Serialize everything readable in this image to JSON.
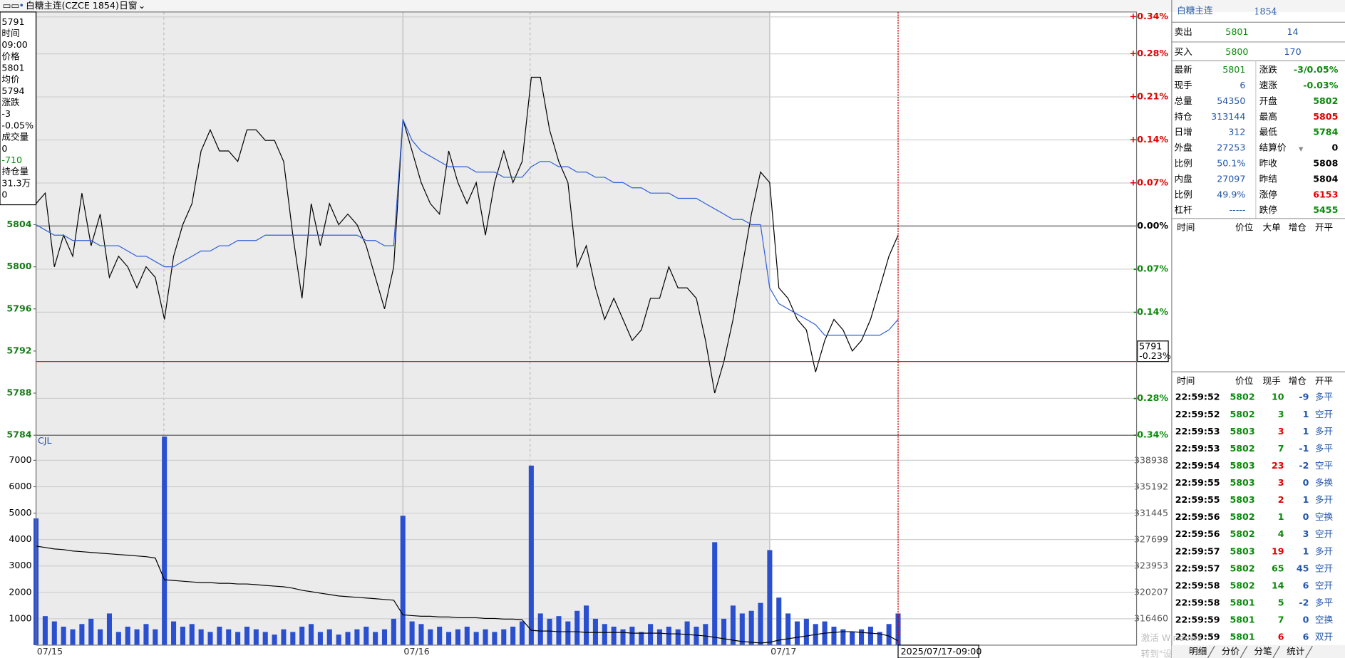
{
  "header": {
    "symbol": "白糖主连(CZCE 1854)",
    "window": "日窗"
  },
  "info_panel": [
    {
      "text": "5791",
      "color": "#000000"
    },
    {
      "text": "时间",
      "color": "#000000"
    },
    {
      "text": "09:00",
      "color": "#000000"
    },
    {
      "text": "价格",
      "color": "#000000"
    },
    {
      "text": "5801",
      "color": "#000000"
    },
    {
      "text": "均价",
      "color": "#000000"
    },
    {
      "text": "5794",
      "color": "#000000"
    },
    {
      "text": "涨跌",
      "color": "#000000"
    },
    {
      "text": "-3",
      "color": "#000000"
    },
    {
      "text": "-0.05%",
      "color": "#000000"
    },
    {
      "text": "成交量",
      "color": "#000000"
    },
    {
      "text": "0",
      "color": "#000000"
    },
    {
      "text": "-710",
      "color": "#0a8a0a"
    },
    {
      "text": "持仓量",
      "color": "#000000"
    },
    {
      "text": "31.3万",
      "color": "#000000"
    },
    {
      "text": "0",
      "color": "#000000"
    }
  ],
  "chart_data": [
    {
      "type": "line",
      "x": [
        0,
        1,
        2,
        3,
        4,
        5,
        6,
        7,
        8,
        9,
        10,
        11,
        12,
        13,
        14,
        15,
        16,
        17,
        18,
        19,
        20,
        21,
        22,
        23,
        24,
        25,
        26,
        27,
        28,
        29,
        30,
        31,
        32,
        33,
        34,
        35,
        36,
        37,
        38,
        39,
        40,
        41,
        42,
        43,
        44,
        45,
        46,
        47,
        48,
        49,
        50,
        51,
        52,
        53,
        54,
        55,
        56,
        57,
        58,
        59,
        60,
        61,
        62,
        63,
        64,
        65,
        66,
        67,
        68,
        69,
        70,
        71,
        72,
        73,
        74,
        75,
        76,
        77,
        78,
        79,
        80,
        81,
        82,
        83,
        84,
        85,
        86,
        87,
        88,
        89,
        90,
        91,
        92,
        93,
        94
      ],
      "xlim": [
        0,
        120
      ],
      "ylim": [
        5784,
        5824.2
      ],
      "yticks": [
        5784,
        5788,
        5792,
        5796,
        5800,
        5804
      ],
      "y2lim": [
        -0.34,
        0.348
      ],
      "y2ticks": [
        {
          "value": 0.34,
          "label": "+0.34%"
        },
        {
          "value": 0.28,
          "label": "+0.28%"
        },
        {
          "value": 0.21,
          "label": "+0.21%"
        },
        {
          "value": 0.14,
          "label": "+0.14%"
        },
        {
          "value": 0.07,
          "label": "+0.07%"
        },
        {
          "value": 0,
          "label": "0.00%"
        },
        {
          "value": -0.07,
          "label": "-0.07%"
        },
        {
          "value": -0.14,
          "label": "-0.14%"
        },
        {
          "value": -0.28,
          "label": "-0.28%"
        },
        {
          "value": -0.34,
          "label": "-0.34%"
        }
      ],
      "grid": true,
      "series": [
        {
          "color": "#000000",
          "values": [
            5806,
            5807,
            5800,
            5803,
            5801,
            5807,
            5802,
            5805,
            5799,
            5801,
            5800,
            5798,
            5800,
            5799,
            5795,
            5801,
            5804,
            5806,
            5811,
            5813,
            5811,
            5811,
            5810,
            5813,
            5813,
            5812,
            5812,
            5810,
            5803,
            5797,
            5806,
            5802,
            5806,
            5804,
            5805,
            5804,
            5802,
            5799,
            5796,
            5800,
            5814,
            5811,
            5808,
            5806,
            5805,
            5811,
            5808,
            5806,
            5808,
            5803,
            5808,
            5811,
            5808,
            5810,
            5818,
            5818,
            5813,
            5810,
            5808,
            5800,
            5802,
            5798,
            5795,
            5797,
            5795,
            5793,
            5794,
            5797,
            5797,
            5800,
            5798,
            5798,
            5797,
            5793,
            5788,
            5791,
            5795,
            5800,
            5805,
            5809,
            5808,
            5798,
            5797,
            5795,
            5794,
            5790,
            5793,
            5795,
            5794,
            5792,
            5793,
            5795,
            5798,
            5801,
            5803
          ]
        },
        {
          "color": "#2f5fd8",
          "values": [
            5804,
            5803.5,
            5803,
            5803,
            5802.5,
            5802.5,
            5802.5,
            5802,
            5802,
            5802,
            5801.5,
            5801,
            5801,
            5800.5,
            5800,
            5800,
            5800.5,
            5801,
            5801.5,
            5801.5,
            5802,
            5802,
            5802.5,
            5802.5,
            5802.5,
            5803,
            5803,
            5803,
            5803,
            5803,
            5803,
            5803,
            5803,
            5803,
            5803,
            5803,
            5802.5,
            5802.5,
            5802,
            5802,
            5814,
            5812,
            5811,
            5810.5,
            5810,
            5809.5,
            5809.5,
            5809.5,
            5809,
            5809,
            5809,
            5808.5,
            5808.5,
            5808.5,
            5809.5,
            5810,
            5810,
            5809.5,
            5809.5,
            5809,
            5809,
            5808.5,
            5808.5,
            5808,
            5808,
            5807.5,
            5807.5,
            5807,
            5807,
            5807,
            5806.5,
            5806.5,
            5806.5,
            5806,
            5805.5,
            5805,
            5804.5,
            5804.5,
            5804,
            5804,
            5798,
            5796.5,
            5796,
            5795.5,
            5795,
            5794.5,
            5793.5,
            5793.5,
            5793.5,
            5793.5,
            5793.5,
            5793.5,
            5793.5,
            5794,
            5795
          ]
        }
      ]
    },
    {
      "type": "bar",
      "label": "CJL",
      "x": [
        0,
        1,
        2,
        3,
        4,
        5,
        6,
        7,
        8,
        9,
        10,
        11,
        12,
        13,
        14,
        15,
        16,
        17,
        18,
        19,
        20,
        21,
        22,
        23,
        24,
        25,
        26,
        27,
        28,
        29,
        30,
        31,
        32,
        33,
        34,
        35,
        36,
        37,
        38,
        39,
        40,
        41,
        42,
        43,
        44,
        45,
        46,
        47,
        48,
        49,
        50,
        51,
        52,
        53,
        54,
        55,
        56,
        57,
        58,
        59,
        60,
        61,
        62,
        63,
        64,
        65,
        66,
        67,
        68,
        69,
        70,
        71,
        72,
        73,
        74,
        75,
        76,
        77,
        78,
        79,
        80,
        81,
        82,
        83,
        84,
        85,
        86,
        87,
        88,
        89,
        90,
        91,
        92,
        93,
        94
      ],
      "xlim": [
        0,
        120
      ],
      "xticks": [
        {
          "value": 0,
          "label": "07/15"
        },
        {
          "value": 40,
          "label": "07/16"
        },
        {
          "value": 80,
          "label": "07/17"
        }
      ],
      "ylim": [
        0,
        7950
      ],
      "yticks": [
        1000,
        2000,
        3000,
        4000,
        5000,
        6000,
        7000
      ],
      "y2lim": [
        312690,
        342590
      ],
      "y2ticks": [
        316460,
        320207,
        323953,
        327699,
        331445,
        335192,
        338938
      ],
      "grid": true,
      "series": [
        {
          "color": "#2a50d0",
          "values": [
            4800,
            1100,
            900,
            700,
            600,
            800,
            1000,
            600,
            1200,
            500,
            700,
            600,
            800,
            600,
            7900,
            900,
            700,
            800,
            600,
            500,
            700,
            600,
            500,
            700,
            600,
            500,
            400,
            600,
            500,
            700,
            800,
            500,
            600,
            400,
            500,
            600,
            700,
            500,
            600,
            1000,
            4900,
            900,
            800,
            600,
            700,
            500,
            600,
            700,
            500,
            600,
            500,
            600,
            700,
            900,
            6800,
            1200,
            1000,
            1100,
            900,
            1300,
            1500,
            1000,
            800,
            700,
            600,
            700,
            500,
            800,
            600,
            700,
            600,
            900,
            700,
            800,
            3900,
            1000,
            1500,
            1200,
            1300,
            1600,
            3600,
            1800,
            1200,
            900,
            1000,
            800,
            900,
            700,
            600,
            500,
            600,
            700,
            500,
            800,
            1200
          ]
        },
        {
          "type": "line",
          "axis": "y2",
          "color": "#000000",
          "values": [
            326800,
            326600,
            326400,
            326300,
            326100,
            326000,
            325900,
            325800,
            325700,
            325600,
            325500,
            325400,
            325300,
            325100,
            322000,
            321900,
            321800,
            321700,
            321600,
            321600,
            321500,
            321500,
            321400,
            321400,
            321300,
            321200,
            321100,
            321000,
            320800,
            320500,
            320300,
            320100,
            319900,
            319700,
            319600,
            319500,
            319400,
            319300,
            319200,
            319100,
            317000,
            316900,
            316800,
            316800,
            316700,
            316700,
            316600,
            316600,
            316600,
            316500,
            316500,
            316400,
            316400,
            316300,
            314800,
            314700,
            314700,
            314600,
            314600,
            314600,
            314500,
            314500,
            314500,
            314500,
            314500,
            314400,
            314400,
            314400,
            314400,
            314300,
            314300,
            314200,
            314100,
            314000,
            313800,
            313600,
            313400,
            313200,
            313100,
            313000,
            313100,
            313400,
            313600,
            313800,
            314000,
            314200,
            314400,
            314500,
            314600,
            314600,
            314500,
            314400,
            314300,
            314000,
            313300
          ]
        }
      ]
    }
  ],
  "crosshair": {
    "price": 5791,
    "change": "-0.23%",
    "time": "2025/07/17-09:00"
  },
  "quote": {
    "title": "白糖主连",
    "code": "1854",
    "sell": {
      "label": "卖出",
      "price": 5801,
      "volume": 14
    },
    "buy": {
      "label": "买入",
      "price": 5800,
      "volume": 170
    },
    "stats": [
      {
        "label": "最新",
        "value": 5801,
        "color": "#0a8a0a"
      },
      {
        "label": "涨跌",
        "value": "-3/0.05%",
        "color": "#0a8a0a"
      },
      {
        "label": "现手",
        "value": 6,
        "color": "#2255aa"
      },
      {
        "label": "速涨",
        "value": "-0.03%",
        "color": "#0a8a0a"
      },
      {
        "label": "总量",
        "value": 54350,
        "color": "#2255aa"
      },
      {
        "label": "开盘",
        "value": 5802,
        "color": "#0a8a0a"
      },
      {
        "label": "持仓",
        "value": 313144,
        "color": "#2255aa"
      },
      {
        "label": "最高",
        "value": 5805,
        "color": "#e00000"
      },
      {
        "label": "日增",
        "value": 312,
        "color": "#2255aa"
      },
      {
        "label": "最低",
        "value": 5784,
        "color": "#0a8a0a"
      },
      {
        "label": "外盘",
        "value": 27253,
        "color": "#2255aa"
      },
      {
        "label": "结算价",
        "value": 0,
        "color": "#000000"
      },
      {
        "label": "比例",
        "value": "50.1%",
        "color": "#2255aa"
      },
      {
        "label": "昨收",
        "value": 5808,
        "color": "#000000"
      },
      {
        "label": "内盘",
        "value": 27097,
        "color": "#2255aa"
      },
      {
        "label": "昨结",
        "value": 5804,
        "color": "#000000"
      },
      {
        "label": "比例",
        "value": "49.9%",
        "color": "#2255aa"
      },
      {
        "label": "涨停",
        "value": 6153,
        "color": "#e00000"
      },
      {
        "label": "杠杆",
        "value": "-----",
        "color": "#2255aa"
      },
      {
        "label": "跌停",
        "value": 5455,
        "color": "#0a8a0a"
      }
    ],
    "big_header": [
      "时间",
      "价位",
      "大单",
      "增仓",
      "开平"
    ],
    "trade_header": [
      "时间",
      "价位",
      "现手",
      "增仓",
      "开平"
    ],
    "trades": [
      {
        "time": "22:59:52",
        "price": 5802,
        "volume": 10,
        "oi_change": -9,
        "type": "多平",
        "color": "#0a8a0a"
      },
      {
        "time": "22:59:52",
        "price": 5802,
        "volume": 3,
        "oi_change": 1,
        "type": "空开",
        "color": "#0a8a0a"
      },
      {
        "time": "22:59:53",
        "price": 5803,
        "volume": 3,
        "oi_change": 1,
        "type": "多开",
        "color": "#e00000"
      },
      {
        "time": "22:59:53",
        "price": 5802,
        "volume": 7,
        "oi_change": -1,
        "type": "多平",
        "color": "#0a8a0a"
      },
      {
        "time": "22:59:54",
        "price": 5803,
        "volume": 23,
        "oi_change": -2,
        "type": "空平",
        "color": "#e00000"
      },
      {
        "time": "22:59:55",
        "price": 5803,
        "volume": 3,
        "oi_change": 0,
        "type": "多换",
        "color": "#e00000"
      },
      {
        "time": "22:59:55",
        "price": 5803,
        "volume": 2,
        "oi_change": 1,
        "type": "多开",
        "color": "#e00000"
      },
      {
        "time": "22:59:56",
        "price": 5802,
        "volume": 1,
        "oi_change": 0,
        "type": "空换",
        "color": "#0a8a0a"
      },
      {
        "time": "22:59:56",
        "price": 5802,
        "volume": 4,
        "oi_change": 3,
        "type": "空开",
        "color": "#0a8a0a"
      },
      {
        "time": "22:59:57",
        "price": 5803,
        "volume": 19,
        "oi_change": 1,
        "type": "多开",
        "color": "#e00000"
      },
      {
        "time": "22:59:57",
        "price": 5802,
        "volume": 65,
        "oi_change": 45,
        "type": "空开",
        "color": "#0a8a0a"
      },
      {
        "time": "22:59:58",
        "price": 5802,
        "volume": 14,
        "oi_change": 6,
        "type": "空开",
        "color": "#0a8a0a"
      },
      {
        "time": "22:59:58",
        "price": 5801,
        "volume": 5,
        "oi_change": -2,
        "type": "多平",
        "color": "#0a8a0a"
      },
      {
        "time": "22:59:59",
        "price": 5801,
        "volume": 7,
        "oi_change": 0,
        "type": "空换",
        "color": "#0a8a0a"
      },
      {
        "time": "22:59:59",
        "price": 5801,
        "volume": 6,
        "oi_change": 6,
        "type": "双开",
        "color": "#e00000"
      }
    ],
    "tabs": [
      "明细",
      "分价",
      "分笔",
      "统计"
    ]
  },
  "watermark": [
    "激活 Windows",
    "转到\"设置\"以激活 Windows。"
  ]
}
